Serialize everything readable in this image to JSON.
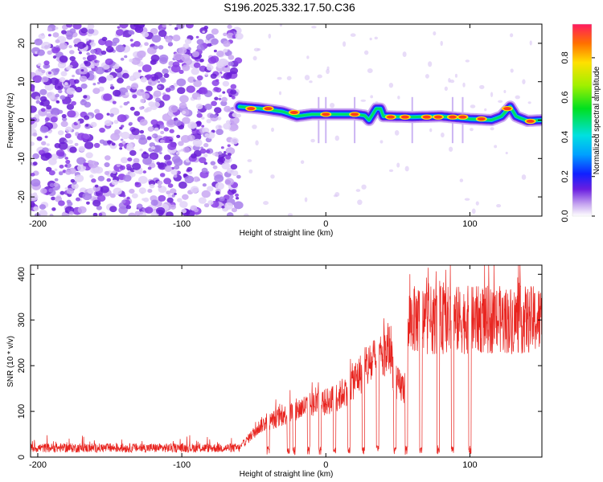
{
  "title": "S196.2025.332.17.50.C36",
  "colors": {
    "snr_line": "#e8231e",
    "scatter": "#8a3ee6",
    "frame": "#000000"
  },
  "chart_data": [
    {
      "type": "heatmap",
      "name": "spectrogram",
      "xlabel": "Height of straight line (km)",
      "ylabel": "Frequency (Hz)",
      "xlim": [
        -205,
        150
      ],
      "ylim": [
        -25,
        25
      ],
      "xticks": [
        -200,
        -100,
        0,
        100
      ],
      "yticks": [
        20,
        10,
        0,
        -10,
        -20
      ],
      "colorbar": {
        "label": "Normalized spectral amplitude",
        "range": [
          0.0,
          0.97
        ],
        "ticks": [
          0.0,
          0.2,
          0.4,
          0.6,
          0.8
        ],
        "tick_labels": [
          "0.0",
          "0.2",
          "0.4",
          "0.6",
          "0.8"
        ],
        "colormap": "rainbow"
      },
      "noise_region_x": [
        -205,
        -60
      ],
      "ridge": [
        [
          -60,
          3.5
        ],
        [
          -45,
          3
        ],
        [
          -30,
          2.2
        ],
        [
          -20,
          1
        ],
        [
          -10,
          1.5
        ],
        [
          0,
          1.5
        ],
        [
          20,
          1.5
        ],
        [
          27,
          1.2
        ],
        [
          30,
          0
        ],
        [
          35,
          3
        ],
        [
          38,
          3
        ],
        [
          40,
          1
        ],
        [
          60,
          0.8
        ],
        [
          80,
          1
        ],
        [
          100,
          0.3
        ],
        [
          115,
          0
        ],
        [
          122,
          1
        ],
        [
          128,
          3.5
        ],
        [
          132,
          1
        ],
        [
          140,
          -0.2
        ],
        [
          150,
          0
        ]
      ],
      "hotspots": [
        [
          -52,
          3
        ],
        [
          -40,
          3
        ],
        [
          -22,
          2
        ],
        [
          0,
          1.5
        ],
        [
          20,
          1.5
        ],
        [
          45,
          0.8
        ],
        [
          55,
          0.8
        ],
        [
          70,
          0.8
        ],
        [
          78,
          0.8
        ],
        [
          88,
          0.8
        ],
        [
          95,
          0.8
        ],
        [
          108,
          0.3
        ],
        [
          126,
          3
        ],
        [
          142,
          -0.3
        ]
      ]
    },
    {
      "type": "line",
      "name": "snr",
      "xlabel": "Height of straight line (km)",
      "ylabel": "SNR (10 * v/v)",
      "xlim": [
        -205,
        150
      ],
      "ylim": [
        0,
        420
      ],
      "xticks": [
        -200,
        -100,
        0,
        100
      ],
      "yticks": [
        0,
        100,
        200,
        300,
        400
      ],
      "baseline": [
        [
          -205,
          20
        ],
        [
          -60,
          20
        ],
        [
          -45,
          70
        ],
        [
          -30,
          90
        ],
        [
          -15,
          110
        ],
        [
          0,
          120
        ],
        [
          10,
          135
        ],
        [
          20,
          170
        ],
        [
          30,
          200
        ],
        [
          40,
          220
        ],
        [
          45,
          240
        ],
        [
          48,
          160
        ],
        [
          55,
          150
        ],
        [
          58,
          300
        ],
        [
          80,
          300
        ],
        [
          100,
          300
        ],
        [
          120,
          300
        ],
        [
          150,
          300
        ]
      ],
      "dropouts": [
        -40,
        -26,
        -22,
        -12,
        -4,
        6,
        16,
        26,
        36,
        48,
        56,
        66,
        78,
        88,
        100
      ]
    }
  ]
}
